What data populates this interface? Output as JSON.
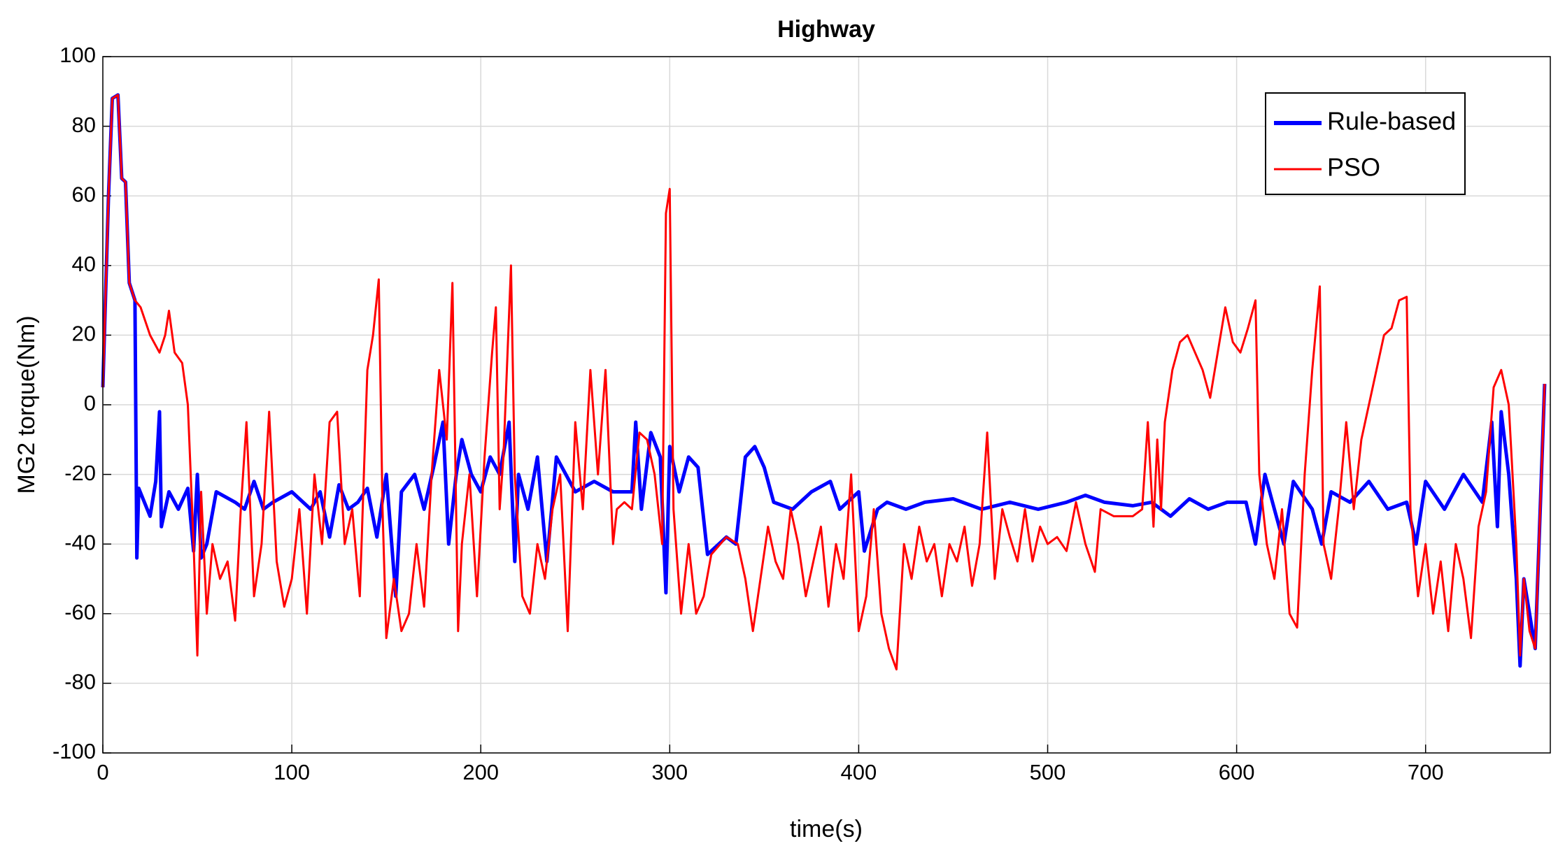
{
  "chart_data": {
    "type": "line",
    "title": "Highway",
    "xlabel": "time(s)",
    "ylabel": "MG2 torque(Nm)",
    "xlim": [
      0,
      766
    ],
    "ylim": [
      -100,
      100
    ],
    "xticks": [
      0,
      100,
      200,
      300,
      400,
      500,
      600,
      700
    ],
    "yticks": [
      -100,
      -80,
      -60,
      -40,
      -20,
      0,
      20,
      40,
      60,
      80,
      100
    ],
    "grid": true,
    "legend": "upper right",
    "series": [
      {
        "name": "Rule-based",
        "color": "#0000ff",
        "x": [
          0,
          3,
          5,
          8,
          10,
          12,
          14,
          17,
          18,
          19,
          22,
          25,
          28,
          30,
          31,
          35,
          40,
          45,
          48,
          50,
          52,
          55,
          60,
          70,
          75,
          80,
          85,
          90,
          100,
          110,
          115,
          120,
          125,
          130,
          135,
          140,
          145,
          150,
          155,
          158,
          165,
          170,
          175,
          180,
          183,
          187,
          190,
          195,
          200,
          205,
          210,
          215,
          218,
          220,
          225,
          230,
          235,
          240,
          245,
          250,
          260,
          270,
          280,
          282,
          285,
          290,
          295,
          298,
          300,
          305,
          310,
          315,
          320,
          330,
          335,
          340,
          345,
          350,
          355,
          365,
          375,
          385,
          390,
          400,
          403,
          410,
          415,
          425,
          435,
          450,
          465,
          480,
          495,
          510,
          520,
          530,
          545,
          555,
          565,
          575,
          585,
          595,
          605,
          610,
          615,
          620,
          625,
          630,
          640,
          645,
          650,
          660,
          670,
          680,
          690,
          695,
          700,
          710,
          720,
          730,
          735,
          738,
          740,
          744,
          748,
          750,
          752,
          755,
          758,
          760,
          763
        ],
        "values": [
          5,
          60,
          88,
          89,
          65,
          64,
          35,
          30,
          -44,
          -24,
          -28,
          -32,
          -22,
          -2,
          -35,
          -25,
          -30,
          -24,
          -42,
          -20,
          -44,
          -40,
          -25,
          -28,
          -30,
          -22,
          -30,
          -28,
          -25,
          -30,
          -25,
          -38,
          -23,
          -30,
          -28,
          -24,
          -38,
          -20,
          -55,
          -25,
          -20,
          -30,
          -18,
          -5,
          -40,
          -20,
          -10,
          -20,
          -25,
          -15,
          -20,
          -5,
          -45,
          -20,
          -30,
          -15,
          -45,
          -15,
          -20,
          -25,
          -22,
          -25,
          -25,
          -5,
          -30,
          -8,
          -15,
          -54,
          -12,
          -25,
          -15,
          -18,
          -43,
          -38,
          -40,
          -15,
          -12,
          -18,
          -28,
          -30,
          -25,
          -22,
          -30,
          -25,
          -42,
          -30,
          -28,
          -30,
          -28,
          -27,
          -30,
          -28,
          -30,
          -28,
          -26,
          -28,
          -29,
          -28,
          -32,
          -27,
          -30,
          -28,
          -28,
          -40,
          -20,
          -30,
          -40,
          -22,
          -30,
          -40,
          -25,
          -28,
          -22,
          -30,
          -28,
          -40,
          -22,
          -30,
          -20,
          -28,
          -5,
          -35,
          -2,
          -20,
          -50,
          -75,
          -50,
          -60,
          -70,
          -40,
          6
        ]
      },
      {
        "name": "PSO",
        "color": "#ff0000",
        "x": [
          0,
          3,
          5,
          8,
          10,
          12,
          14,
          17,
          20,
          25,
          30,
          33,
          35,
          38,
          42,
          45,
          48,
          50,
          52,
          55,
          58,
          62,
          66,
          70,
          73,
          76,
          80,
          84,
          88,
          92,
          96,
          100,
          104,
          108,
          112,
          116,
          120,
          124,
          128,
          132,
          136,
          140,
          143,
          146,
          148,
          150,
          154,
          158,
          162,
          166,
          170,
          174,
          178,
          182,
          185,
          188,
          190,
          194,
          198,
          202,
          206,
          208,
          210,
          212,
          216,
          218,
          222,
          226,
          230,
          234,
          238,
          242,
          246,
          250,
          254,
          258,
          262,
          266,
          270,
          272,
          276,
          280,
          284,
          288,
          292,
          296,
          298,
          300,
          302,
          306,
          310,
          314,
          318,
          322,
          330,
          336,
          340,
          344,
          348,
          352,
          356,
          360,
          364,
          368,
          372,
          376,
          380,
          384,
          388,
          392,
          396,
          400,
          404,
          408,
          412,
          416,
          420,
          424,
          428,
          432,
          436,
          440,
          444,
          448,
          452,
          456,
          460,
          464,
          468,
          472,
          476,
          480,
          484,
          488,
          492,
          496,
          500,
          505,
          510,
          515,
          520,
          525,
          528,
          535,
          545,
          550,
          553,
          556,
          558,
          560,
          562,
          566,
          570,
          574,
          578,
          582,
          586,
          590,
          594,
          598,
          602,
          606,
          610,
          612,
          616,
          620,
          624,
          628,
          632,
          636,
          640,
          644,
          646,
          650,
          654,
          658,
          662,
          666,
          670,
          674,
          678,
          682,
          686,
          690,
          692,
          696,
          700,
          704,
          708,
          712,
          716,
          720,
          724,
          728,
          732,
          736,
          740,
          744,
          748,
          750,
          752,
          755,
          758,
          760,
          763
        ],
        "values": [
          5,
          60,
          88,
          89,
          65,
          64,
          35,
          30,
          28,
          20,
          15,
          20,
          27,
          15,
          12,
          0,
          -40,
          -72,
          -25,
          -60,
          -40,
          -50,
          -45,
          -62,
          -30,
          -5,
          -55,
          -40,
          -2,
          -45,
          -58,
          -50,
          -30,
          -60,
          -20,
          -40,
          -5,
          -2,
          -40,
          -30,
          -55,
          10,
          20,
          36,
          -30,
          -67,
          -50,
          -65,
          -60,
          -40,
          -58,
          -20,
          10,
          -10,
          35,
          -65,
          -40,
          -20,
          -55,
          -15,
          15,
          28,
          -30,
          -15,
          40,
          -20,
          -55,
          -60,
          -40,
          -50,
          -30,
          -20,
          -65,
          -5,
          -30,
          10,
          -20,
          10,
          -40,
          -30,
          -28,
          -30,
          -8,
          -10,
          -20,
          -40,
          55,
          62,
          -30,
          -60,
          -40,
          -60,
          -55,
          -43,
          -38,
          -40,
          -50,
          -65,
          -50,
          -35,
          -45,
          -50,
          -30,
          -40,
          -55,
          -45,
          -35,
          -58,
          -40,
          -50,
          -20,
          -65,
          -55,
          -30,
          -60,
          -70,
          -76,
          -40,
          -50,
          -35,
          -45,
          -40,
          -55,
          -40,
          -45,
          -35,
          -52,
          -40,
          -8,
          -50,
          -30,
          -38,
          -45,
          -30,
          -45,
          -35,
          -40,
          -38,
          -42,
          -28,
          -40,
          -48,
          -30,
          -32,
          -32,
          -30,
          -5,
          -35,
          -10,
          -30,
          -5,
          10,
          18,
          20,
          15,
          10,
          2,
          15,
          28,
          18,
          15,
          22,
          30,
          -20,
          -40,
          -50,
          -30,
          -60,
          -64,
          -20,
          10,
          34,
          -40,
          -50,
          -30,
          -5,
          -30,
          -10,
          0,
          10,
          20,
          22,
          30,
          31,
          -30,
          -55,
          -40,
          -60,
          -45,
          -65,
          -40,
          -50,
          -67,
          -35,
          -25,
          5,
          10,
          0,
          -40,
          -72,
          -50,
          -65,
          -70,
          -40,
          6
        ]
      }
    ]
  }
}
